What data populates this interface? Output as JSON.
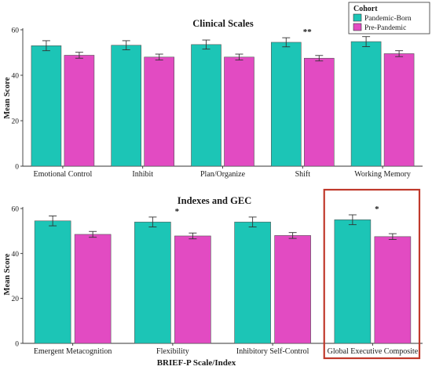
{
  "colors": {
    "pandemic_born": "#1cc5b6",
    "pre_pandemic": "#e24bc2",
    "highlight_box": "#c0392b"
  },
  "legend": {
    "title": "Cohort",
    "items": [
      "Pandemic-Born",
      "Pre-Pandemic"
    ],
    "placement": "top-right"
  },
  "xlabel": "BRIEF-P Scale/Index",
  "chart_data": [
    {
      "type": "bar",
      "title": "Clinical Scales",
      "ylabel": "Mean Score",
      "ylim": [
        0,
        60
      ],
      "yticks": [
        0,
        20,
        40,
        60
      ],
      "categories": [
        "Emotional Control",
        "Inhibit",
        "Plan/Organize",
        "Shift",
        "Working Memory"
      ],
      "series": [
        {
          "name": "Pandemic-Born",
          "values": [
            53.0,
            53.2,
            53.5,
            54.5,
            54.8
          ],
          "errors": [
            2.2,
            2.0,
            2.0,
            2.0,
            2.2
          ]
        },
        {
          "name": "Pre-Pandemic",
          "values": [
            48.8,
            48.0,
            48.0,
            47.5,
            49.5
          ],
          "errors": [
            1.3,
            1.3,
            1.3,
            1.2,
            1.3
          ]
        }
      ],
      "annotations": [
        {
          "category": "Shift",
          "text": "**"
        }
      ],
      "grid": false
    },
    {
      "type": "bar",
      "title": "Indexes and GEC",
      "ylabel": "Mean Score",
      "ylim": [
        0,
        60
      ],
      "yticks": [
        0,
        20,
        40,
        60
      ],
      "categories": [
        "Emergent Metacognition",
        "Flexibility",
        "Inhibitory Self-Control",
        "Global Executive Composite"
      ],
      "series": [
        {
          "name": "Pandemic-Born",
          "values": [
            54.5,
            54.0,
            54.0,
            55.0
          ],
          "errors": [
            2.2,
            2.2,
            2.2,
            2.2
          ]
        },
        {
          "name": "Pre-Pandemic",
          "values": [
            48.5,
            47.8,
            48.0,
            47.5
          ],
          "errors": [
            1.3,
            1.3,
            1.3,
            1.3
          ]
        }
      ],
      "annotations": [
        {
          "category": "Flexibility",
          "text": "*"
        },
        {
          "category": "Global Executive Composite",
          "text": "*"
        }
      ],
      "highlight": "Global Executive Composite",
      "grid": false
    }
  ]
}
